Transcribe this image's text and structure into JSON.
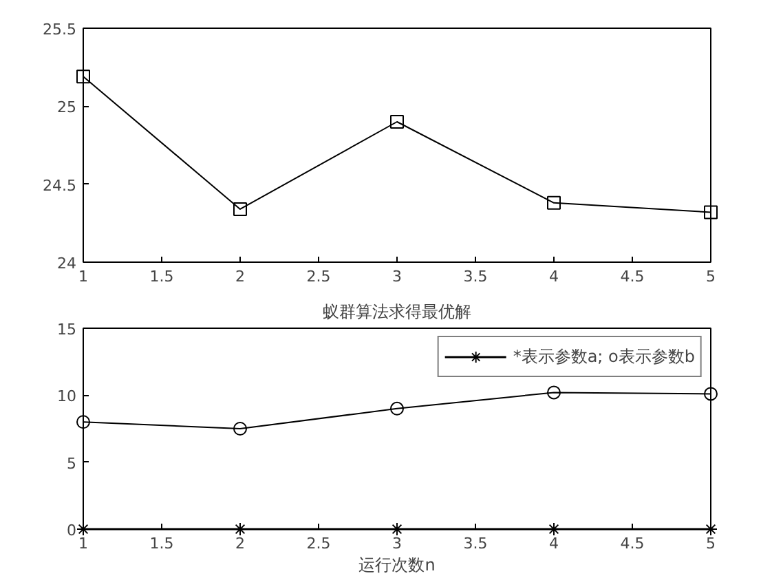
{
  "chart_data": [
    {
      "type": "line",
      "x": [
        1,
        2,
        3,
        4,
        5
      ],
      "series": [
        {
          "color": "#000000",
          "marker": "square",
          "values": [
            25.19,
            24.34,
            24.9,
            24.38,
            24.32
          ]
        }
      ],
      "xlim": [
        1,
        5
      ],
      "xticks": [
        1,
        1.5,
        2,
        2.5,
        3,
        3.5,
        4,
        4.5,
        5
      ],
      "ylim": [
        24,
        25.5
      ],
      "yticks": [
        24,
        24.5,
        25,
        25.5
      ],
      "grid": false,
      "legend": false,
      "line_style": "solid"
    },
    {
      "type": "line",
      "title": "蚁群算法求得最优解",
      "xlabel": "运行次数n",
      "x": [
        1,
        2,
        3,
        4,
        5
      ],
      "series": [
        {
          "name": "*表示参数a; o表示参数b",
          "color": "#000000",
          "marker": "cross",
          "values": [
            0,
            0,
            0,
            0,
            0
          ]
        },
        {
          "color": "#000000",
          "marker": "circle",
          "values": [
            8.0,
            7.5,
            9.0,
            10.2,
            10.1
          ]
        }
      ],
      "xlim": [
        1,
        5
      ],
      "xticks": [
        1,
        1.5,
        2,
        2.5,
        3,
        3.5,
        4,
        4.5,
        5
      ],
      "ylim": [
        0,
        15
      ],
      "yticks": [
        0,
        5,
        10,
        15
      ],
      "grid": false,
      "legend": "top right",
      "line_style": "solid"
    }
  ]
}
